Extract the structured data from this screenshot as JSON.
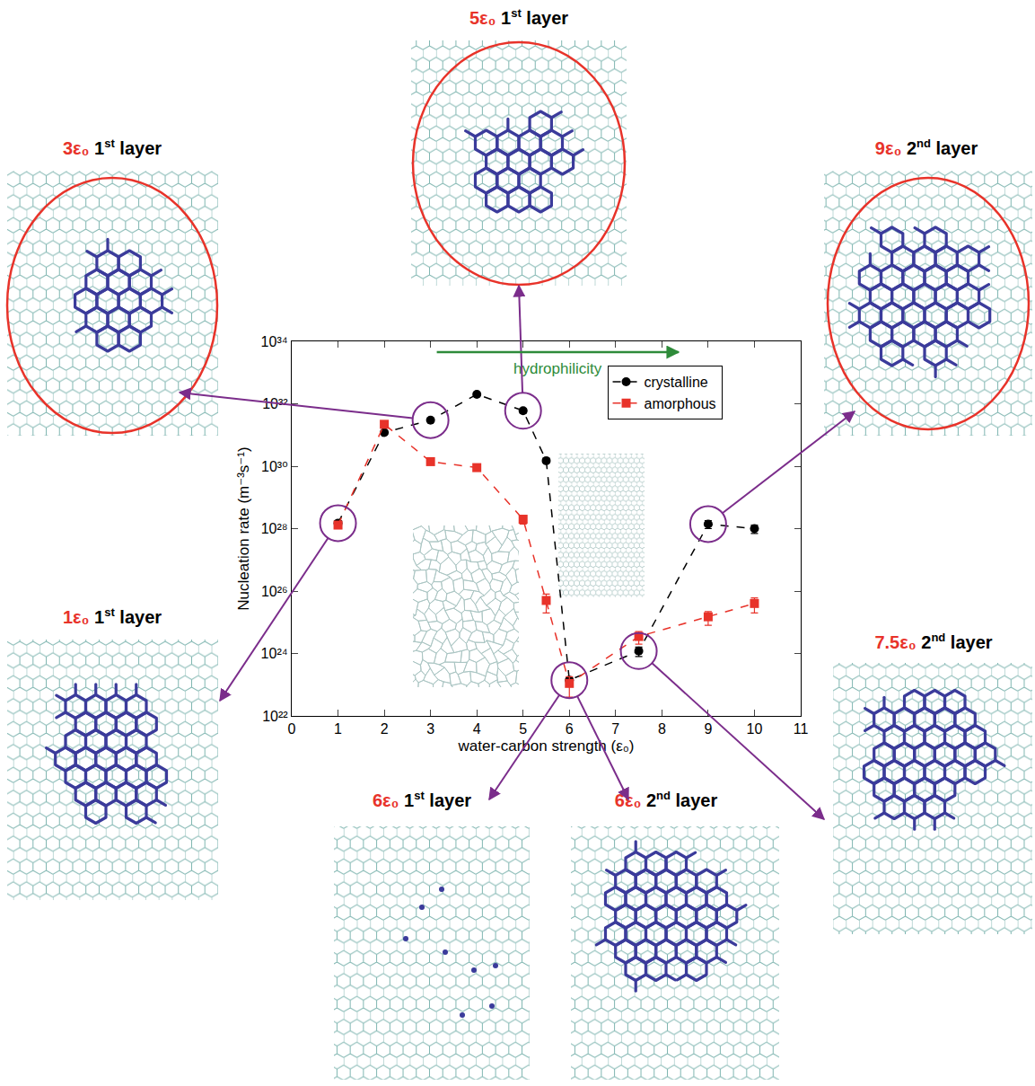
{
  "chart_data": {
    "type": "scatter",
    "xlabel": "water-carbon strength (ε₀)",
    "ylabel": "Nucleation rate (m⁻³s⁻¹)",
    "log": "y",
    "grid": false,
    "legend": "upper right",
    "xlim": [
      0,
      11
    ],
    "xticks": [
      0,
      1,
      2,
      3,
      4,
      5,
      6,
      7,
      8,
      9,
      10,
      11
    ],
    "ylim": [
      1e+22,
      1e+34
    ],
    "yticks": [
      {
        "value": 1e+22,
        "label": "10²²"
      },
      {
        "value": 1e+24,
        "label": "10²⁴"
      },
      {
        "value": 1e+26,
        "label": "10²⁶"
      },
      {
        "value": 1e+28,
        "label": "10²⁸"
      },
      {
        "value": 1e+30,
        "label": "10³⁰"
      },
      {
        "value": 1e+32,
        "label": "10³²"
      },
      {
        "value": 1e+34,
        "label": "10³⁴"
      }
    ],
    "series": [
      {
        "name": "crystalline",
        "color": "#000000",
        "marker": "circle",
        "line_style": "dashed",
        "x": [
          1,
          2,
          3,
          4,
          5,
          5.5,
          6,
          7.5,
          9,
          10
        ],
        "values": [
          1.5e+28,
          1.2e+31,
          3e+31,
          2e+32,
          6e+31,
          1.5e+30,
          1.4e+23,
          1.2e+24,
          1.4e+28,
          1e+28
        ],
        "errors": [
          3e+27,
          1e+30,
          3e+30,
          2e+31,
          1e+31,
          2e+29,
          3e+22,
          4e+23,
          4e+27,
          3e+27
        ]
      },
      {
        "name": "amorphous",
        "color": "#e8332a",
        "marker": "square",
        "line_style": "dashed",
        "x": [
          1,
          2,
          3,
          4,
          5,
          5.5,
          6,
          7.5,
          9,
          10
        ],
        "values": [
          1.3e+28,
          2.2e+31,
          1.4e+30,
          9e+29,
          2e+28,
          5e+25,
          1.1e+23,
          3.5e+24,
          1.5e+25,
          4e+25
        ],
        "errors": [
          2e+27,
          3e+30,
          2e+29,
          1e+29,
          6e+27,
          3e+25,
          7e+22,
          1.5e+24,
          7e+24,
          2e+25
        ]
      }
    ],
    "annotations": [
      {
        "text": "hydrophilicity",
        "color": "#2e8b3a"
      }
    ]
  },
  "panels": [
    {
      "strength": "3ε₀",
      "layer": "1st layer",
      "x": 3
    },
    {
      "strength": "5ε₀",
      "layer": "1st layer",
      "x": 5
    },
    {
      "strength": "9ε₀",
      "layer": "2nd layer",
      "x": 9
    },
    {
      "strength": "1ε₀",
      "layer": "1st layer",
      "x": 1
    },
    {
      "strength": "7.5ε₀",
      "layer": "2nd layer",
      "x": 7.5
    },
    {
      "strength": "6ε₀",
      "layer": "1st layer",
      "x": 6
    },
    {
      "strength": "6ε₀",
      "layer": "2nd layer",
      "x": 6
    }
  ]
}
